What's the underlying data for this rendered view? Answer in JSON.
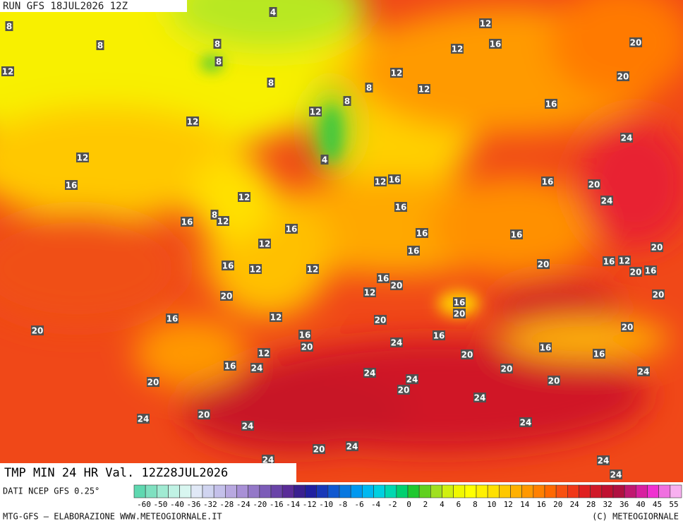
{
  "header": {
    "run": "RUN GFS 18JUL2026 12Z"
  },
  "map": {
    "isotherm_labels": [
      4,
      8,
      8,
      8,
      8,
      12,
      8,
      12,
      12,
      16,
      20,
      12,
      8,
      12,
      20,
      12,
      8,
      16,
      12,
      24,
      12,
      4,
      16,
      12,
      16,
      16,
      20,
      12,
      24,
      16,
      8,
      12,
      16,
      16,
      16,
      16,
      12,
      16,
      20,
      16,
      12,
      12,
      20,
      16,
      12,
      20,
      16,
      16,
      20,
      12,
      20,
      20,
      16,
      20,
      16,
      12,
      20,
      20,
      20,
      16,
      16,
      24,
      20,
      12,
      16,
      20,
      16,
      16,
      24,
      24,
      20,
      24,
      20,
      24,
      20,
      20,
      24,
      20,
      24,
      24,
      24,
      20,
      24,
      24,
      24,
      24
    ]
  },
  "footer": {
    "field": "TMP MIN 24 HR Val. 12Z28JUL2026",
    "source": "DATI NCEP GFS 0.25°",
    "credit": "MTG-GFS — ELABORAZIONE WWW.METEOGIORNALE.IT",
    "copyright": "(C) METEOGIORNALE"
  },
  "colorbar": {
    "colors": [
      "#5fd8b0",
      "#7fe0c0",
      "#a0ead2",
      "#c0f2e4",
      "#d8f6f0",
      "#e0e8f6",
      "#d0d4f0",
      "#c4c0ea",
      "#b8a8e0",
      "#a890d6",
      "#9478c8",
      "#7c5cb8",
      "#6a44a8",
      "#5a2c98",
      "#3a2090",
      "#2020a0",
      "#1838b8",
      "#1058d0",
      "#0878e0",
      "#0098f0",
      "#00b8f0",
      "#00d0e0",
      "#00d8b0",
      "#00d070",
      "#20c830",
      "#60d020",
      "#a0e020",
      "#d0f010",
      "#f0f800",
      "#ffff00",
      "#fff000",
      "#ffe000",
      "#ffc800",
      "#ffb000",
      "#ff9800",
      "#ff8000",
      "#ff6800",
      "#f85010",
      "#f03818",
      "#e02020",
      "#d01828",
      "#c01030",
      "#b01040",
      "#c01870",
      "#d820a0",
      "#f030d0",
      "#f070e0",
      "#f8b0f0"
    ],
    "ticks": [
      -60,
      -50,
      -40,
      -36,
      -32,
      -28,
      -24,
      -20,
      -16,
      -14,
      -12,
      -10,
      -8,
      -6,
      -4,
      -2,
      0,
      2,
      4,
      6,
      8,
      10,
      12,
      14,
      16,
      20,
      24,
      28,
      32,
      36,
      40,
      45,
      55
    ]
  }
}
